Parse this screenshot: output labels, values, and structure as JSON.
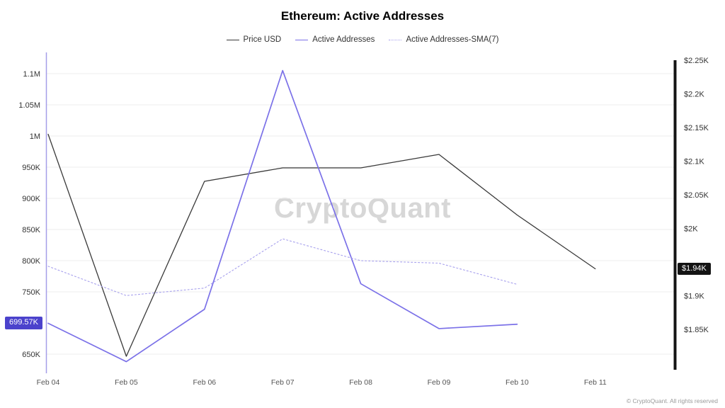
{
  "title": "Ethereum: Active Addresses",
  "watermark": "CryptoQuant",
  "footer": "© CryptoQuant. All rights reserved",
  "badges": {
    "left": {
      "label": "699.57K",
      "value_k": 699.57
    },
    "right": {
      "label": "$1.94K",
      "value_usd_k": 1.94
    }
  },
  "colors": {
    "left_badge_bg": "#4b42cc",
    "right_badge_bg": "#141414",
    "left_axis_line": "#a59ee8",
    "right_axis_bar": "#141414",
    "grid": "#ededed",
    "tick_text": "#333333",
    "x_label_text": "#555555"
  },
  "chart_data": {
    "type": "line",
    "title": "Ethereum: Active Addresses",
    "categories": [
      "Feb 04",
      "Feb 05",
      "Feb 06",
      "Feb 07",
      "Feb 08",
      "Feb 09",
      "Feb 10",
      "Feb 11"
    ],
    "series": [
      {
        "name": "Price USD",
        "axis": "right",
        "unit": "USD thousands",
        "color": "#3a3a3a",
        "line_style": "solid",
        "values": [
          2.14,
          1.81,
          2.07,
          2.09,
          2.09,
          2.11,
          2.02,
          1.94
        ]
      },
      {
        "name": "Active Addresses",
        "axis": "left",
        "unit": "addresses thousands",
        "color": "#7b71e8",
        "line_style": "solid",
        "values": [
          699.57,
          638,
          722,
          1105,
          763,
          691,
          698,
          null
        ]
      },
      {
        "name": "Active Addresses-SMA(7)",
        "axis": "left",
        "unit": "addresses thousands",
        "color": "#a7a0ed",
        "line_style": "dotted",
        "values": [
          791,
          744,
          756,
          835,
          800,
          796,
          762,
          null
        ]
      }
    ],
    "left_axis": {
      "ticks": [
        {
          "label": "1.1M",
          "value_k": 1100
        },
        {
          "label": "1.05M",
          "value_k": 1050
        },
        {
          "label": "1M",
          "value_k": 1000
        },
        {
          "label": "950K",
          "value_k": 950
        },
        {
          "label": "900K",
          "value_k": 900
        },
        {
          "label": "850K",
          "value_k": 850
        },
        {
          "label": "800K",
          "value_k": 800
        },
        {
          "label": "750K",
          "value_k": 750
        },
        {
          "label": "650K",
          "value_k": 650
        }
      ],
      "range_k": [
        620,
        1130
      ]
    },
    "right_axis": {
      "ticks": [
        {
          "label": "$2.25K",
          "value_usd_k": 2.25
        },
        {
          "label": "$2.2K",
          "value_usd_k": 2.2
        },
        {
          "label": "$2.15K",
          "value_usd_k": 2.15
        },
        {
          "label": "$2.1K",
          "value_usd_k": 2.1
        },
        {
          "label": "$2.05K",
          "value_usd_k": 2.05
        },
        {
          "label": "$2K",
          "value_usd_k": 2.0
        },
        {
          "label": "$1.9K",
          "value_usd_k": 1.9
        },
        {
          "label": "$1.85K",
          "value_usd_k": 1.85
        }
      ],
      "range_usd_k": [
        1.79,
        2.27
      ]
    },
    "grid": true,
    "legend_position": "top"
  }
}
